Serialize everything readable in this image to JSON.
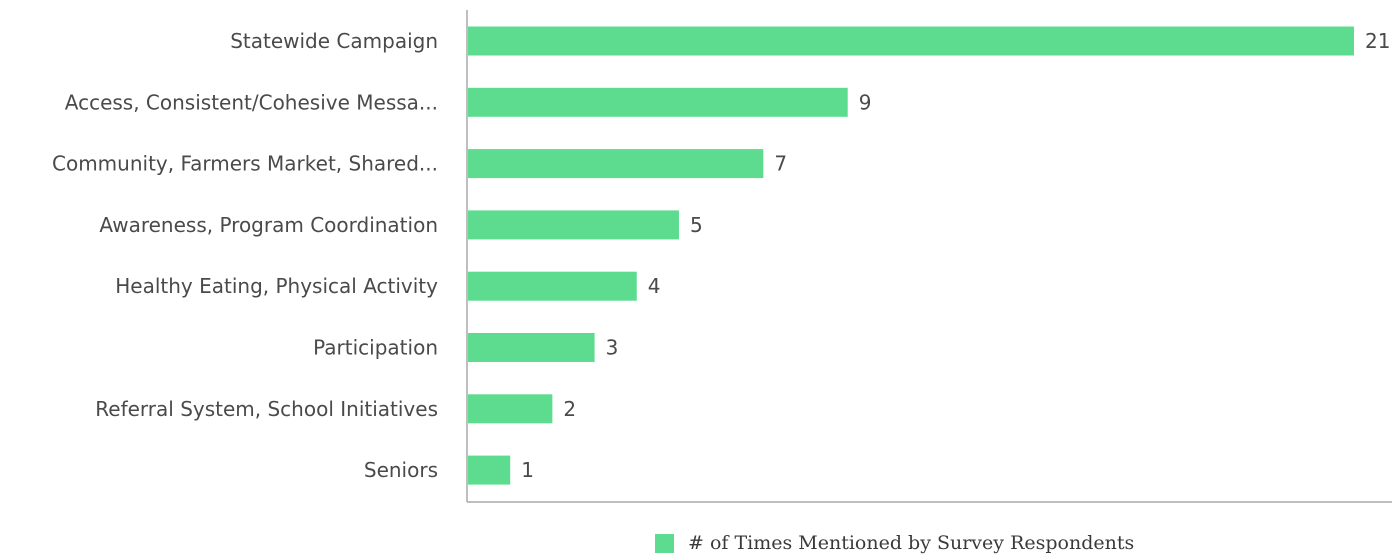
{
  "chart_data": {
    "type": "bar",
    "orientation": "horizontal",
    "categories": [
      "Statewide Campaign",
      "Access, Consistent/Cohesive Messa...",
      "Community, Farmers Market, Shared...",
      "Awareness, Program Coordination",
      "Healthy Eating, Physical Activity",
      "Participation",
      "Referral System, School Initiatives",
      "Seniors"
    ],
    "series": [
      {
        "name": "# of Times Mentioned by Survey Respondents",
        "values": [
          21,
          9,
          7,
          5,
          4,
          3,
          2,
          1
        ],
        "color": "#5ddc8f"
      }
    ],
    "xlim": [
      0,
      21
    ],
    "grid": false,
    "legend": "bottom-center",
    "axis_color": "#aaaaaa"
  }
}
